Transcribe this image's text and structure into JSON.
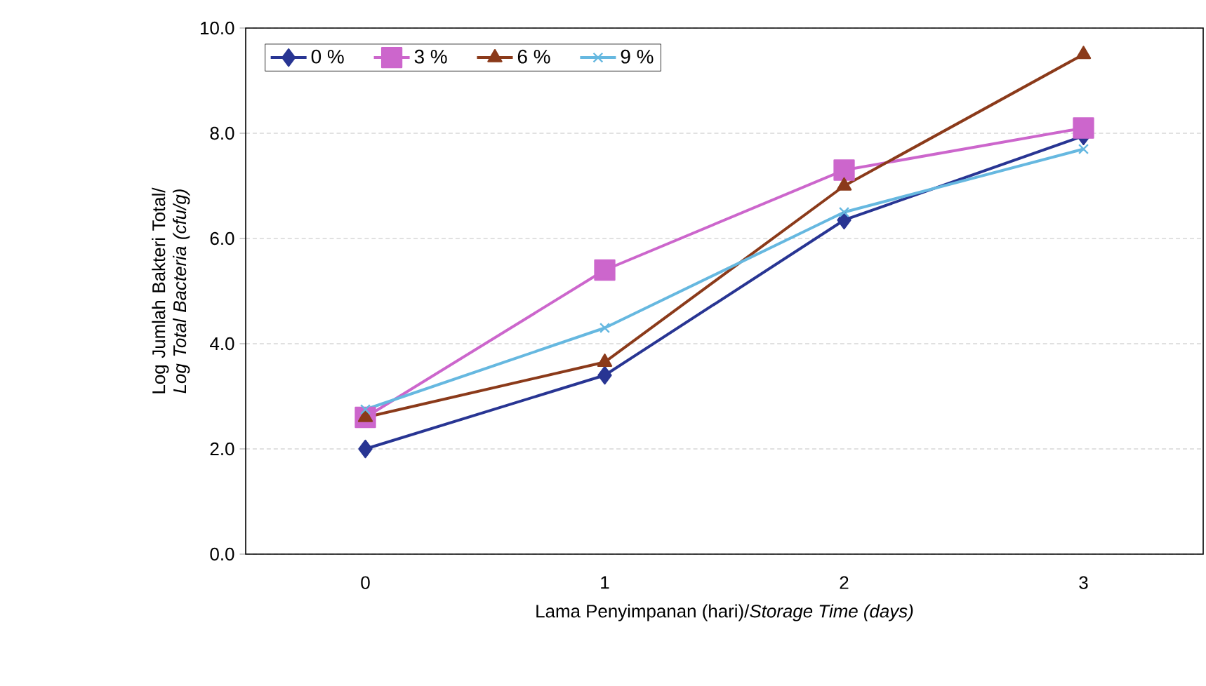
{
  "chart_data": {
    "type": "line",
    "xlabel": "Lama Penyimpanan (hari)/*Storage Time (days)*",
    "ylabel": "Log Jumlah Bakteri Total/ *Log Total Bacteria (cfu/g)*",
    "categories": [
      "0",
      "1",
      "2",
      "3"
    ],
    "series": [
      {
        "name": "0 %",
        "color": "#283593",
        "marker": "diamond",
        "values": [
          2.0,
          3.4,
          6.35,
          7.95
        ]
      },
      {
        "name": "3 %",
        "color": "#cc66cc",
        "marker": "square",
        "values": [
          2.6,
          5.4,
          7.3,
          8.1
        ]
      },
      {
        "name": "6 %",
        "color": "#8b3a1a",
        "marker": "triangle",
        "values": [
          2.6,
          3.65,
          7.0,
          9.5
        ]
      },
      {
        "name": "9 %",
        "color": "#66b8e0",
        "marker": "cross",
        "values": [
          2.75,
          4.3,
          6.5,
          7.7
        ]
      }
    ],
    "ylim": [
      0,
      10
    ],
    "yticks": [
      {
        "value": 0,
        "label": "0.0"
      },
      {
        "value": 2,
        "label": "2.0"
      },
      {
        "value": 4,
        "label": "4.0"
      },
      {
        "value": 6,
        "label": "6.0"
      },
      {
        "value": 8,
        "label": "8.0"
      },
      {
        "value": 10,
        "label": "10.0"
      }
    ],
    "grid": "y",
    "legend": "top left",
    "line_style": "solid"
  }
}
